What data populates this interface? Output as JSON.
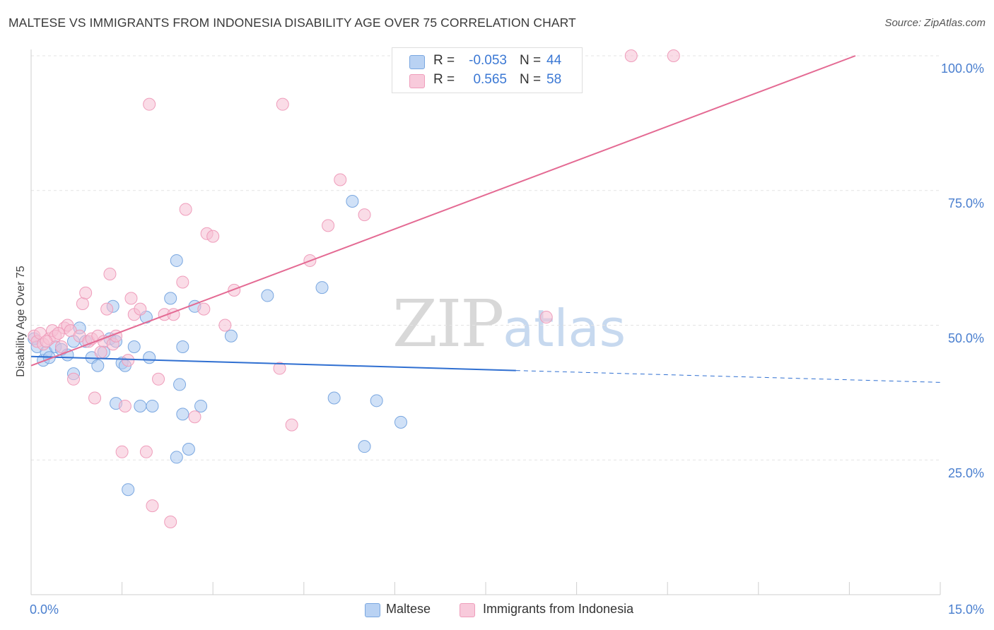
{
  "header": {
    "title": "MALTESE VS IMMIGRANTS FROM INDONESIA DISABILITY AGE OVER 75 CORRELATION CHART",
    "source": "Source: ZipAtlas.com"
  },
  "legend_top": {
    "rows": [
      {
        "r_label": "R =",
        "r_value": "-0.053",
        "n_label": "N =",
        "n_value": "44"
      },
      {
        "r_label": "R =",
        "r_value": "0.565",
        "n_label": "N =",
        "n_value": "58"
      }
    ]
  },
  "legend_bottom": {
    "items": [
      {
        "label": "Maltese"
      },
      {
        "label": "Immigrants from Indonesia"
      }
    ]
  },
  "watermark": {
    "zip": "ZIP",
    "atlas": "atlas"
  },
  "colors": {
    "series1_fill": "#aac8f0",
    "series1_stroke": "#7aa7e0",
    "series1_line": "#2f6fd1",
    "series2_fill": "#f6bfd3",
    "series2_stroke": "#ef9dbb",
    "series2_line": "#e46a93",
    "tick_text": "#4a7fcf",
    "grid": "#e3e3e3"
  },
  "chart_data": {
    "type": "scatter",
    "title": "MALTESE VS IMMIGRANTS FROM INDONESIA DISABILITY AGE OVER 75 CORRELATION CHART",
    "xlabel": "",
    "ylabel": "Disability Age Over 75",
    "x_ticks": [
      "0.0%",
      "15.0%"
    ],
    "y_ticks": [
      "25.0%",
      "50.0%",
      "75.0%",
      "100.0%"
    ],
    "xlim": [
      0,
      15
    ],
    "ylim": [
      0,
      100
    ],
    "grid": true,
    "legend_position": "top-center",
    "series": [
      {
        "name": "Maltese",
        "r": -0.053,
        "n": 44,
        "trend": {
          "x0": 0.0,
          "y0": 44.2,
          "x1": 8.0,
          "y1": 41.6,
          "dashed_to_x": 15.0,
          "dashed_to_y": 39.4
        },
        "points": [
          [
            0.05,
            47.5
          ],
          [
            0.1,
            46.0
          ],
          [
            0.2,
            43.5
          ],
          [
            0.25,
            45.0
          ],
          [
            0.3,
            44.0
          ],
          [
            0.4,
            46.0
          ],
          [
            0.5,
            45.5
          ],
          [
            0.6,
            44.5
          ],
          [
            0.7,
            47.0
          ],
          [
            0.8,
            49.5
          ],
          [
            0.9,
            47.0
          ],
          [
            1.0,
            44.0
          ],
          [
            1.1,
            42.5
          ],
          [
            1.2,
            45.0
          ],
          [
            1.3,
            47.5
          ],
          [
            1.35,
            53.5
          ],
          [
            1.4,
            47.0
          ],
          [
            1.5,
            43.0
          ],
          [
            1.55,
            42.5
          ],
          [
            1.7,
            46.0
          ],
          [
            1.9,
            51.5
          ],
          [
            1.95,
            44.0
          ],
          [
            2.0,
            35.0
          ],
          [
            2.3,
            55.0
          ],
          [
            2.4,
            62.0
          ],
          [
            2.45,
            39.0
          ],
          [
            2.5,
            46.0
          ],
          [
            2.6,
            27.0
          ],
          [
            2.7,
            53.5
          ],
          [
            2.8,
            35.0
          ],
          [
            3.3,
            48.0
          ],
          [
            3.9,
            55.5
          ],
          [
            4.8,
            57.0
          ],
          [
            5.0,
            36.5
          ],
          [
            5.3,
            73.0
          ],
          [
            5.5,
            27.5
          ],
          [
            5.7,
            36.0
          ],
          [
            6.1,
            32.0
          ],
          [
            1.6,
            19.5
          ],
          [
            2.4,
            25.5
          ],
          [
            2.5,
            33.5
          ],
          [
            1.4,
            35.5
          ],
          [
            1.8,
            35.0
          ],
          [
            0.7,
            41.0
          ]
        ]
      },
      {
        "name": "Immigrants from Indonesia",
        "r": 0.565,
        "n": 58,
        "trend": {
          "x0": 0.0,
          "y0": 42.5,
          "x1": 13.6,
          "y1": 100.0
        },
        "points": [
          [
            0.05,
            48.0
          ],
          [
            0.1,
            47.0
          ],
          [
            0.15,
            48.5
          ],
          [
            0.2,
            46.5
          ],
          [
            0.3,
            47.5
          ],
          [
            0.35,
            49.0
          ],
          [
            0.4,
            48.0
          ],
          [
            0.5,
            46.0
          ],
          [
            0.55,
            49.5
          ],
          [
            0.6,
            50.0
          ],
          [
            0.65,
            49.0
          ],
          [
            0.7,
            40.0
          ],
          [
            0.8,
            48.0
          ],
          [
            0.85,
            54.0
          ],
          [
            0.9,
            56.0
          ],
          [
            0.95,
            47.0
          ],
          [
            1.0,
            47.5
          ],
          [
            1.05,
            36.5
          ],
          [
            1.1,
            48.0
          ],
          [
            1.2,
            47.0
          ],
          [
            1.25,
            53.0
          ],
          [
            1.3,
            59.5
          ],
          [
            1.35,
            46.5
          ],
          [
            1.4,
            48.0
          ],
          [
            1.5,
            26.5
          ],
          [
            1.55,
            35.0
          ],
          [
            1.6,
            43.5
          ],
          [
            1.65,
            55.0
          ],
          [
            1.7,
            52.0
          ],
          [
            1.8,
            53.0
          ],
          [
            1.9,
            26.5
          ],
          [
            1.95,
            91.0
          ],
          [
            2.0,
            16.5
          ],
          [
            2.1,
            40.0
          ],
          [
            2.2,
            52.0
          ],
          [
            2.3,
            13.5
          ],
          [
            2.35,
            52.0
          ],
          [
            2.5,
            58.0
          ],
          [
            2.55,
            71.5
          ],
          [
            2.7,
            33.0
          ],
          [
            2.85,
            53.0
          ],
          [
            2.9,
            67.0
          ],
          [
            3.0,
            66.5
          ],
          [
            3.2,
            50.0
          ],
          [
            3.35,
            56.5
          ],
          [
            4.1,
            42.0
          ],
          [
            4.15,
            91.0
          ],
          [
            4.3,
            31.5
          ],
          [
            4.6,
            62.0
          ],
          [
            4.9,
            68.5
          ],
          [
            5.1,
            77.0
          ],
          [
            5.5,
            70.5
          ],
          [
            8.5,
            51.5
          ],
          [
            9.9,
            100.0
          ],
          [
            10.6,
            100.0
          ],
          [
            0.25,
            47.0
          ],
          [
            0.45,
            48.5
          ],
          [
            1.15,
            45.0
          ]
        ]
      }
    ]
  }
}
